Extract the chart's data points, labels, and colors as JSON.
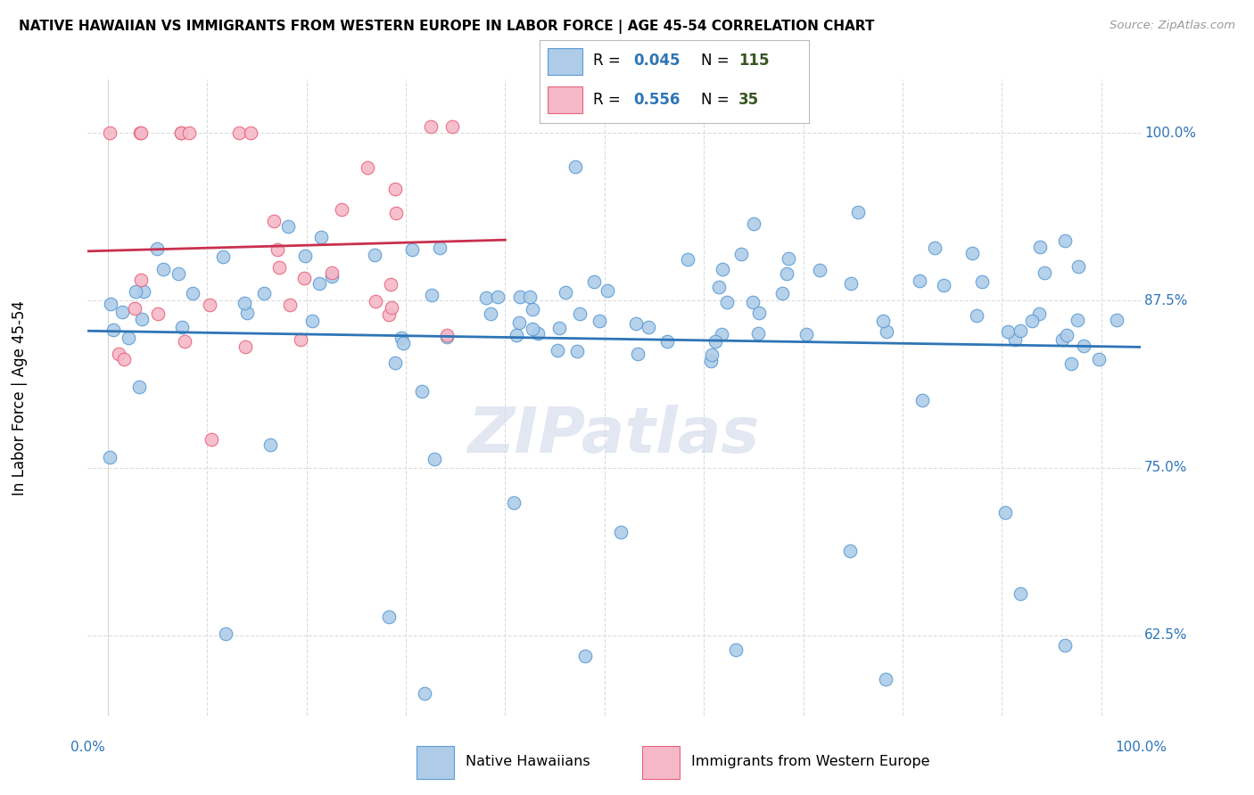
{
  "title": "NATIVE HAWAIIAN VS IMMIGRANTS FROM WESTERN EUROPE IN LABOR FORCE | AGE 45-54 CORRELATION CHART",
  "source": "Source: ZipAtlas.com",
  "ylabel": "In Labor Force | Age 45-54",
  "y_ticks": [
    0.625,
    0.75,
    0.875,
    1.0
  ],
  "y_tick_labels": [
    "62.5%",
    "75.0%",
    "87.5%",
    "100.0%"
  ],
  "x_tick_labels_show": [
    "0.0%",
    "100.0%"
  ],
  "x_ticks_minor": [
    0.0,
    0.1,
    0.2,
    0.3,
    0.4,
    0.5,
    0.6,
    0.7,
    0.8,
    0.9,
    1.0
  ],
  "xlim": [
    -0.02,
    1.04
  ],
  "ylim": [
    0.565,
    1.04
  ],
  "blue_R": 0.045,
  "blue_N": 115,
  "pink_R": 0.556,
  "pink_N": 35,
  "blue_color": "#AECCE8",
  "pink_color": "#F5B8C8",
  "blue_edge_color": "#5B9BD5",
  "pink_edge_color": "#E8637A",
  "blue_line_color": "#2E75B6",
  "pink_line_color": "#C9304E",
  "legend_R_color": "#2E75B6",
  "legend_N_color": "#375623",
  "background_color": "#FFFFFF",
  "grid_color": "#DCDCDC",
  "watermark": "ZIPatlas",
  "watermark_color": "#D0D8E8"
}
